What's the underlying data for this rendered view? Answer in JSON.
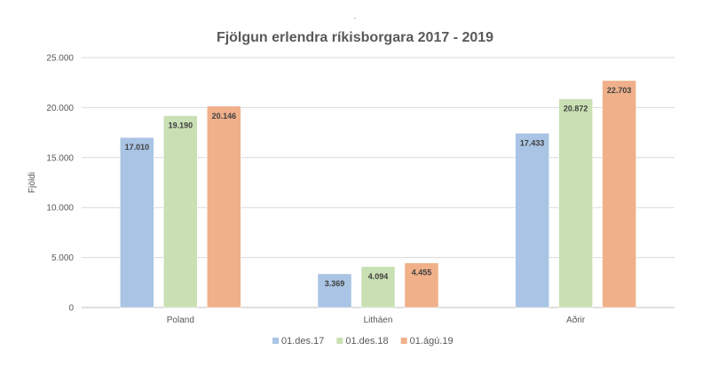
{
  "chart_data": {
    "type": "bar",
    "title": "Fjölgun erlendra ríkisborgara 2017 - 2019",
    "subtitle_mark": "-",
    "xlabel": "",
    "ylabel": "Fjöldi",
    "categories": [
      "Poland",
      "Litháen",
      "Aðrir"
    ],
    "series": [
      {
        "name": "01.des.17",
        "values": [
          17010,
          3369,
          17433
        ],
        "labels": [
          "17.010",
          "3.369",
          "17.433"
        ],
        "color": "#a9c4e4"
      },
      {
        "name": "01.des.18",
        "values": [
          19190,
          4094,
          20872
        ],
        "labels": [
          "19.190",
          "4.094",
          "20.872"
        ],
        "color": "#c9e0b4"
      },
      {
        "name": "01.ágú.19",
        "values": [
          20146,
          4455,
          22703
        ],
        "labels": [
          "20.146",
          "4.455",
          "22.703"
        ],
        "color": "#f0b08a"
      }
    ],
    "ylim": [
      0,
      25000
    ],
    "yticks": [
      0,
      5000,
      10000,
      15000,
      20000,
      25000
    ],
    "ytick_labels": [
      "0",
      "5.000",
      "10.000",
      "15.000",
      "20.000",
      "25.000"
    ],
    "grid": true,
    "legend": "bottom"
  }
}
